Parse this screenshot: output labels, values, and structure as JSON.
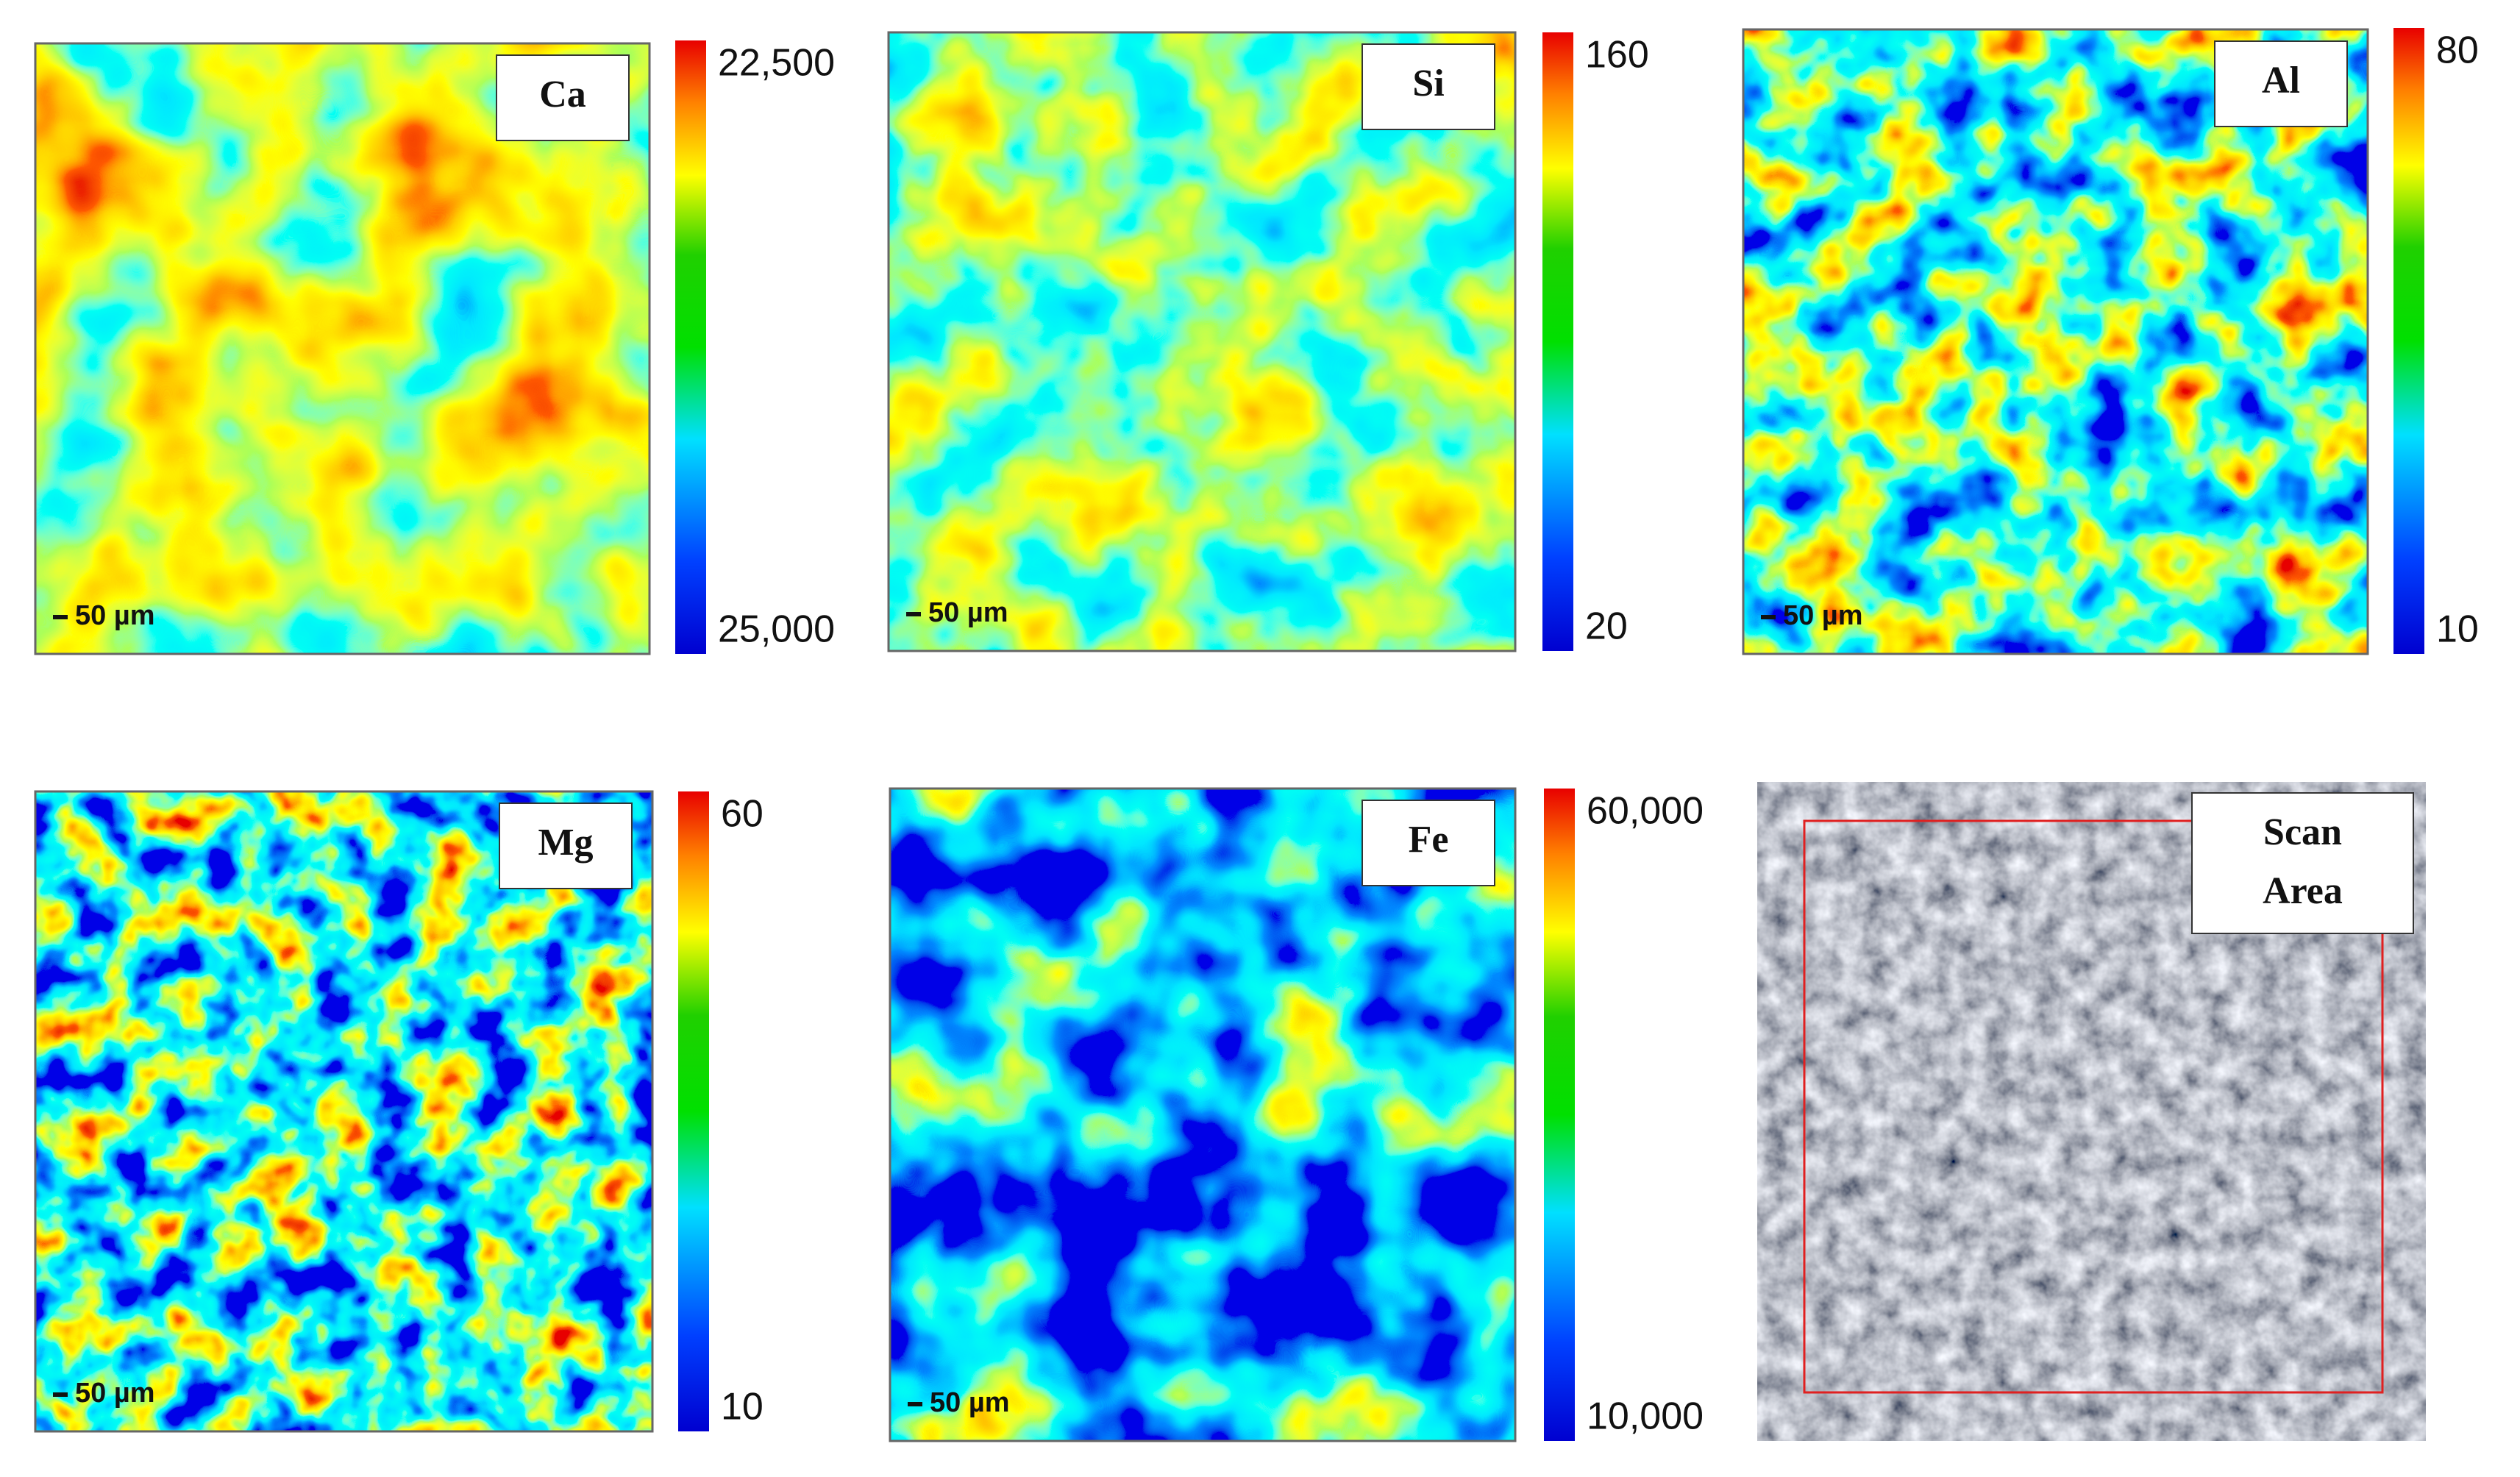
{
  "panels": [
    {
      "label": "Ca",
      "colorbar_max": "22,500",
      "colorbar_min": "25,000",
      "scale_bar": "50 µm"
    },
    {
      "label": "Si",
      "colorbar_max": "160",
      "colorbar_min": "20",
      "scale_bar": "50 µm"
    },
    {
      "label": "Al",
      "colorbar_max": "80",
      "colorbar_min": "10",
      "scale_bar": "50 µm"
    },
    {
      "label": "Mg",
      "colorbar_max": "60",
      "colorbar_min": "10",
      "scale_bar": "50 µm"
    },
    {
      "label": "Fe",
      "colorbar_max": "60,000",
      "colorbar_min": "10,000",
      "scale_bar": "50 µm"
    }
  ],
  "scan": {
    "label": "Scan Area"
  }
}
